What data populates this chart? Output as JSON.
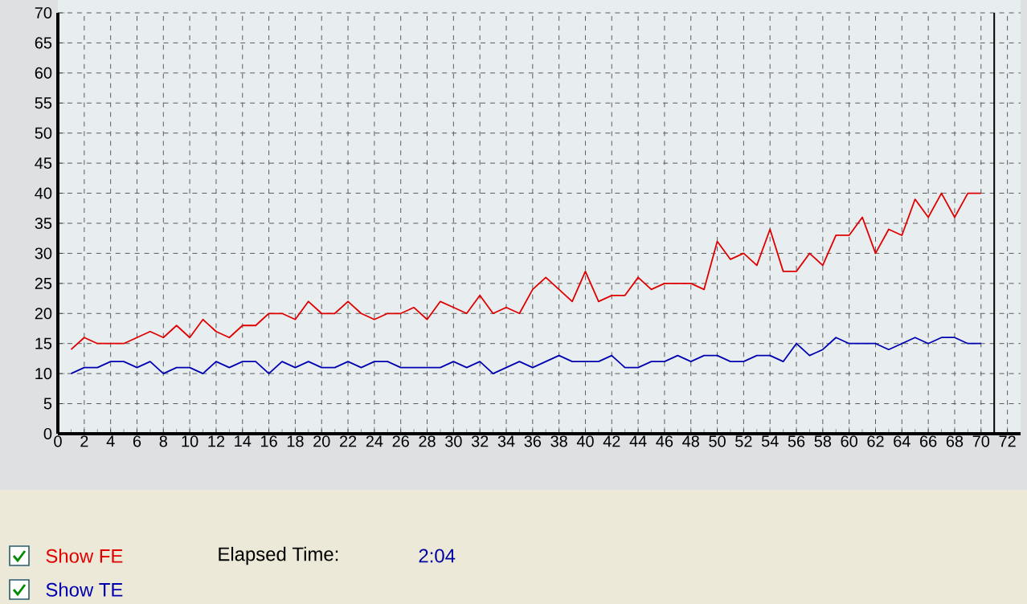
{
  "chart_data": {
    "type": "line",
    "x": [
      1,
      2,
      3,
      4,
      5,
      6,
      7,
      8,
      9,
      10,
      11,
      12,
      13,
      14,
      15,
      16,
      17,
      18,
      19,
      20,
      21,
      22,
      23,
      24,
      25,
      26,
      27,
      28,
      29,
      30,
      31,
      32,
      33,
      34,
      35,
      36,
      37,
      38,
      39,
      40,
      41,
      42,
      43,
      44,
      45,
      46,
      47,
      48,
      49,
      50,
      51,
      52,
      53,
      54,
      55,
      56,
      57,
      58,
      59,
      60,
      61,
      62,
      63,
      64,
      65,
      66,
      67,
      68,
      69,
      70
    ],
    "series": [
      {
        "name": "Show FE",
        "color": "#e00000",
        "values": [
          14,
          16,
          15,
          15,
          15,
          16,
          17,
          16,
          18,
          16,
          19,
          17,
          16,
          18,
          18,
          20,
          20,
          19,
          22,
          20,
          20,
          22,
          20,
          19,
          20,
          20,
          21,
          19,
          22,
          21,
          20,
          23,
          20,
          21,
          20,
          24,
          26,
          24,
          22,
          27,
          22,
          23,
          23,
          26,
          24,
          25,
          25,
          25,
          24,
          32,
          29,
          30,
          28,
          34,
          27,
          27,
          30,
          28,
          33,
          33,
          36,
          30,
          34,
          33,
          39,
          36,
          40,
          36,
          40,
          40
        ]
      },
      {
        "name": "Show TE",
        "color": "#0000b0",
        "values": [
          10,
          11,
          11,
          12,
          12,
          11,
          12,
          10,
          11,
          11,
          10,
          12,
          11,
          12,
          12,
          10,
          12,
          11,
          12,
          11,
          11,
          12,
          11,
          12,
          12,
          11,
          11,
          11,
          11,
          12,
          11,
          12,
          10,
          11,
          12,
          11,
          12,
          13,
          12,
          12,
          12,
          13,
          11,
          11,
          12,
          12,
          13,
          12,
          13,
          13,
          12,
          12,
          13,
          13,
          12,
          15,
          13,
          14,
          16,
          15,
          15,
          15,
          14,
          15,
          16,
          15,
          16,
          16,
          15,
          15
        ]
      }
    ],
    "xlim": [
      0,
      73
    ],
    "ylim": [
      0,
      70
    ],
    "xticks": [
      0,
      2,
      4,
      6,
      8,
      10,
      12,
      14,
      16,
      18,
      20,
      22,
      24,
      26,
      28,
      30,
      32,
      34,
      36,
      38,
      40,
      42,
      44,
      46,
      48,
      50,
      52,
      54,
      56,
      58,
      60,
      62,
      64,
      66,
      68,
      70,
      72
    ],
    "yticks": [
      0,
      5,
      10,
      15,
      20,
      25,
      30,
      35,
      40,
      45,
      50,
      55,
      60,
      65,
      70
    ],
    "grid": true,
    "legend": "bottom left",
    "ref_lines": [
      {
        "axis": "x",
        "value": 71,
        "color": "#000000"
      }
    ],
    "annotations": [
      "Elapsed Time:",
      "2:04"
    ]
  }
}
